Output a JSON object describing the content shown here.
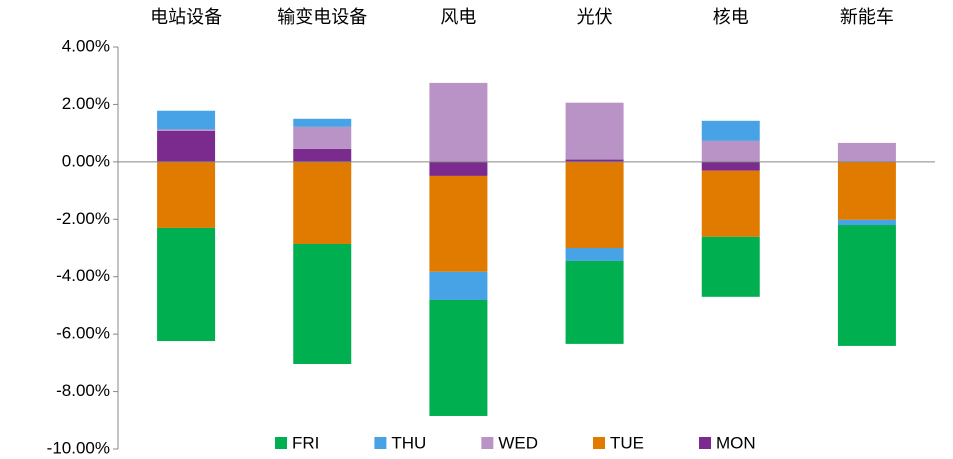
{
  "chart_data": {
    "type": "stacked_bar",
    "categories": [
      "电站设备",
      "输变电设备",
      "风电",
      "光伏",
      "核电",
      "新能车"
    ],
    "series": [
      {
        "name": "FRI",
        "color": "#00b050",
        "values": [
          -3.94,
          -4.18,
          -4.04,
          -2.89,
          -2.09,
          -4.21
        ]
      },
      {
        "name": "THU",
        "color": "#47a3e6",
        "values": [
          0.65,
          0.28,
          -0.98,
          -0.45,
          0.7,
          -0.18
        ]
      },
      {
        "name": "WED",
        "color": "#b992c6",
        "values": [
          0.05,
          0.77,
          2.75,
          1.98,
          0.73,
          0.66
        ]
      },
      {
        "name": "TUE",
        "color": "#e07b00",
        "values": [
          -2.3,
          -2.86,
          -3.34,
          -3.0,
          -2.3,
          -2.02
        ]
      },
      {
        "name": "MON",
        "color": "#7b2a8e",
        "values": [
          1.08,
          0.45,
          -0.49,
          0.08,
          -0.31,
          0
        ]
      }
    ],
    "ylim": [
      -10,
      4
    ],
    "yticks": [
      {
        "value": -10,
        "label": "-10.00%"
      },
      {
        "value": -8,
        "label": "-8.00%"
      },
      {
        "value": -6,
        "label": "-6.00%"
      },
      {
        "value": -4,
        "label": "-4.00%"
      },
      {
        "value": -2,
        "label": "-2.00%"
      },
      {
        "value": 0,
        "label": "0.00%"
      },
      {
        "value": 2,
        "label": "2.00%"
      },
      {
        "value": 4,
        "label": "4.00%"
      }
    ],
    "legend": "bottom"
  }
}
